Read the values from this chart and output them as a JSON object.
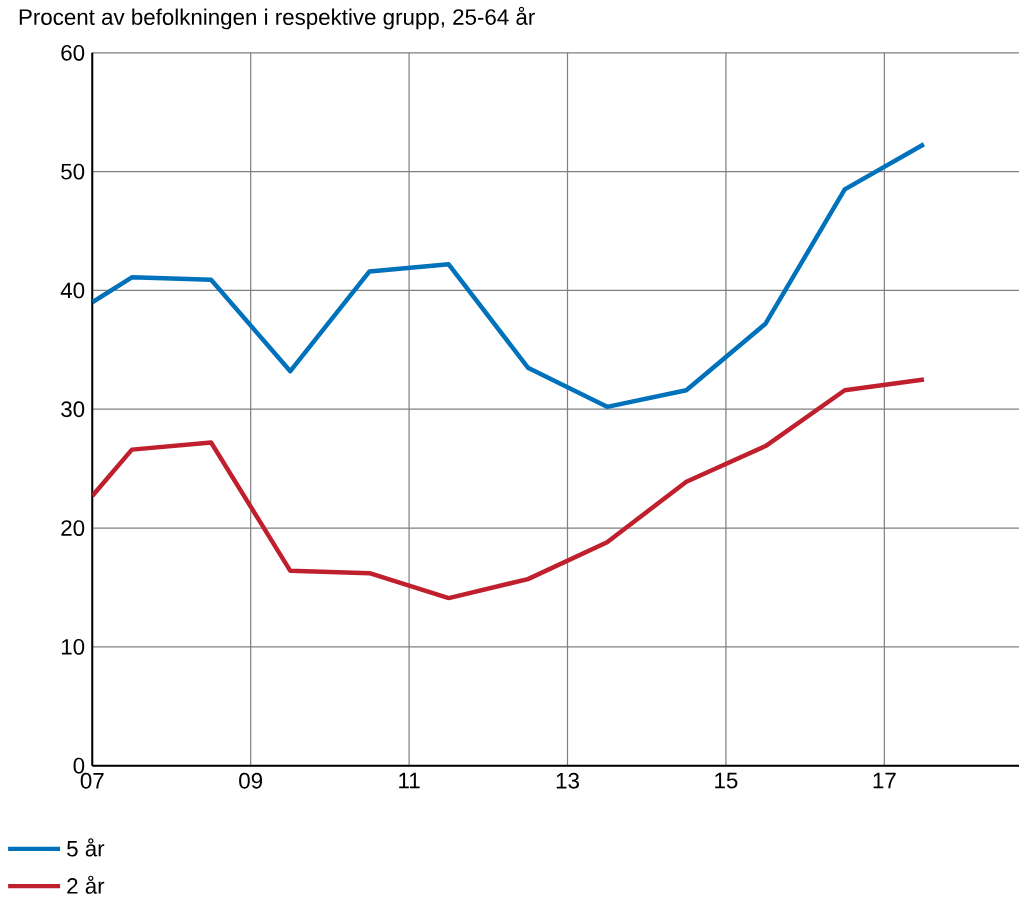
{
  "chart_data": {
    "type": "line",
    "title": "Procent av befolkningen i respektive grupp, 25-64 år",
    "x": [
      7,
      7.5,
      8.5,
      9.5,
      10.5,
      11.5,
      12.5,
      13.5,
      14.5,
      15.5,
      16.5,
      17.5
    ],
    "series": [
      {
        "name": "5 år",
        "color": "#0072bb",
        "values": [
          39.0,
          41.1,
          40.9,
          33.2,
          41.6,
          42.2,
          33.5,
          30.2,
          31.6,
          37.2,
          48.5,
          52.3
        ]
      },
      {
        "name": "2 år",
        "color": "#c0202e",
        "values": [
          22.7,
          26.6,
          27.2,
          16.4,
          16.2,
          14.1,
          15.7,
          18.8,
          23.9,
          26.9,
          31.6,
          32.5
        ]
      }
    ],
    "xlim": [
      7,
      18.7
    ],
    "xticks": [
      {
        "value": 7,
        "label": "07"
      },
      {
        "value": 9,
        "label": "09"
      },
      {
        "value": 11,
        "label": "11"
      },
      {
        "value": 13,
        "label": "13"
      },
      {
        "value": 15,
        "label": "15"
      },
      {
        "value": 17,
        "label": "17"
      }
    ],
    "ylim": [
      0,
      60
    ],
    "yticks": [
      0,
      10,
      20,
      30,
      40,
      50,
      60
    ],
    "grid": true,
    "legend": "bottom left",
    "marker": "none",
    "line_style": "solid"
  }
}
